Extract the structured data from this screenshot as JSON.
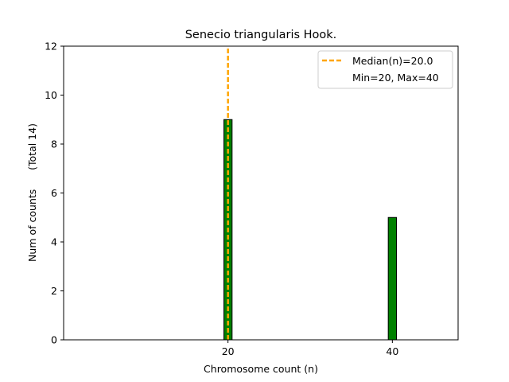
{
  "chart_data": {
    "type": "bar",
    "title": "Senecio triangularis Hook.",
    "xlabel": "Chromosome count (n)",
    "ylabel": "Num of counts      (Total 14)",
    "xlim": [
      0,
      48
    ],
    "ylim": [
      0,
      12
    ],
    "x_ticks": [
      20,
      40
    ],
    "y_ticks": [
      0,
      2,
      4,
      6,
      8,
      10,
      12
    ],
    "bar_width": 1,
    "bar_color": "#008000",
    "bar_edge_color": "#000000",
    "bars": [
      {
        "x": 20,
        "value": 9
      },
      {
        "x": 40,
        "value": 5
      }
    ],
    "median_line": {
      "x": 20,
      "color": "#ffa500",
      "style": "dashed"
    },
    "legend": {
      "position": "top-right",
      "entries": [
        "Median(n)=20.0",
        "Min=20, Max=40"
      ]
    },
    "grid": false
  }
}
